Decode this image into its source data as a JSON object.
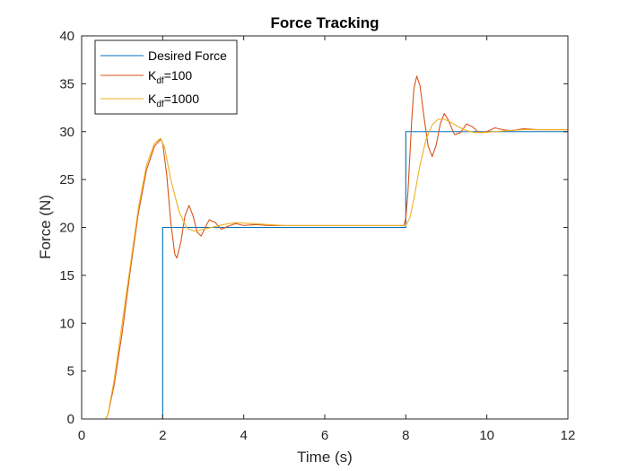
{
  "chart_data": {
    "type": "line",
    "title": "Force Tracking",
    "xlabel": "Time (s)",
    "ylabel": "Force (N)",
    "xlim": [
      0,
      12
    ],
    "ylim": [
      0,
      40
    ],
    "xticks": [
      0,
      2,
      4,
      6,
      8,
      10,
      12
    ],
    "xtick_labels": [
      "0",
      "2",
      "4",
      "6",
      "8",
      "10",
      "12"
    ],
    "yticks": [
      0,
      5,
      10,
      15,
      20,
      25,
      30,
      35,
      40
    ],
    "ytick_labels": [
      "0",
      "5",
      "10",
      "15",
      "20",
      "25",
      "30",
      "35",
      "40"
    ],
    "grid": false,
    "legend_position": "top-left",
    "series": [
      {
        "name": "Desired Force",
        "legend_main": "Desired Force",
        "legend_sub": "",
        "legend_tail": "",
        "color": "#0072BD",
        "x": [
          0,
          2,
          2,
          8,
          8,
          12
        ],
        "y": [
          0,
          0,
          20,
          20,
          30,
          30
        ]
      },
      {
        "name": "K_df=100",
        "legend_main": "K",
        "legend_sub": "df",
        "legend_tail": "=100",
        "color": "#D95319",
        "x": [
          0,
          0.6,
          0.65,
          0.8,
          1.0,
          1.2,
          1.4,
          1.6,
          1.8,
          1.95,
          2.0,
          2.1,
          2.2,
          2.3,
          2.35,
          2.45,
          2.55,
          2.65,
          2.75,
          2.85,
          2.95,
          3.05,
          3.15,
          3.3,
          3.45,
          3.6,
          3.8,
          4.0,
          4.3,
          4.6,
          5.0,
          6.0,
          7.0,
          7.95,
          8.0,
          8.05,
          8.1,
          8.15,
          8.2,
          8.27,
          8.35,
          8.45,
          8.55,
          8.65,
          8.75,
          8.85,
          8.95,
          9.05,
          9.2,
          9.35,
          9.5,
          9.65,
          9.8,
          10.0,
          10.2,
          10.4,
          10.6,
          10.9,
          11.3,
          12.0
        ],
        "y": [
          0,
          0,
          0.5,
          3.5,
          9.0,
          15.5,
          21.5,
          26.0,
          28.5,
          29.2,
          28.8,
          25.5,
          20.5,
          17.2,
          16.8,
          18.5,
          21.2,
          22.3,
          21.2,
          19.5,
          19.1,
          20.0,
          20.8,
          20.5,
          19.8,
          20.1,
          20.4,
          20.2,
          20.3,
          20.2,
          20.2,
          20.2,
          20.2,
          20.2,
          21.0,
          23.5,
          27.5,
          31.5,
          34.5,
          35.8,
          34.8,
          31.5,
          28.5,
          27.4,
          28.6,
          30.8,
          31.9,
          31.2,
          29.7,
          29.9,
          30.8,
          30.5,
          29.9,
          30.0,
          30.4,
          30.2,
          30.1,
          30.3,
          30.2,
          30.2
        ]
      },
      {
        "name": "K_df=1000",
        "legend_main": "K",
        "legend_sub": "df",
        "legend_tail": "=1000",
        "color": "#EDB120",
        "x": [
          0,
          0.6,
          0.65,
          0.8,
          1.0,
          1.2,
          1.4,
          1.6,
          1.8,
          1.95,
          2.05,
          2.2,
          2.4,
          2.6,
          2.8,
          3.0,
          3.2,
          3.5,
          3.8,
          4.2,
          4.6,
          5.0,
          6.0,
          7.0,
          8.0,
          8.1,
          8.2,
          8.35,
          8.5,
          8.65,
          8.8,
          8.95,
          9.1,
          9.3,
          9.5,
          9.7,
          9.9,
          10.2,
          10.5,
          10.9,
          11.3,
          12.0
        ],
        "y": [
          0,
          0,
          0.5,
          4.0,
          10.0,
          16.0,
          22.0,
          26.5,
          28.8,
          29.3,
          28.3,
          25.0,
          21.7,
          19.9,
          19.6,
          19.8,
          20.0,
          20.3,
          20.5,
          20.4,
          20.3,
          20.2,
          20.2,
          20.2,
          20.2,
          21.0,
          23.0,
          26.5,
          29.2,
          30.7,
          31.3,
          31.3,
          31.0,
          30.5,
          30.1,
          29.9,
          29.9,
          30.0,
          30.1,
          30.2,
          30.2,
          30.2
        ]
      }
    ]
  }
}
